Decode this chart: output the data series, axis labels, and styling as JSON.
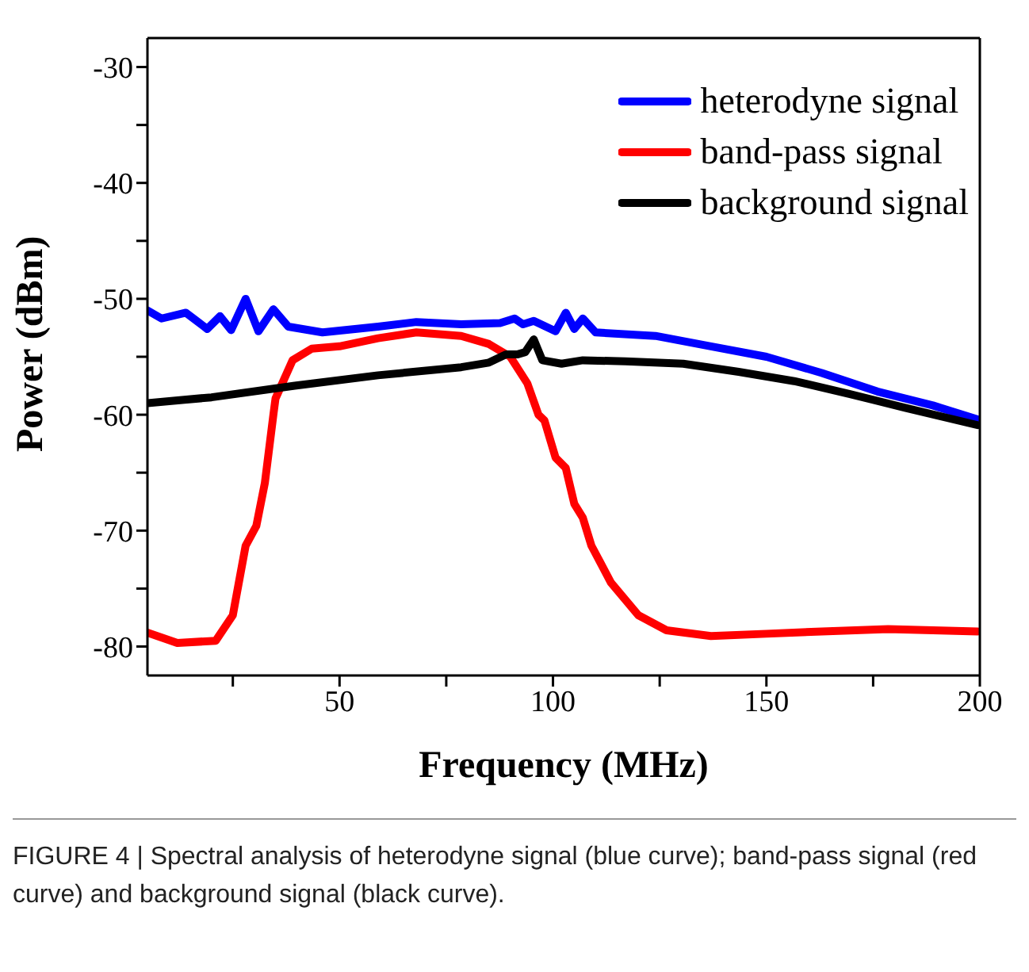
{
  "chart_data": {
    "type": "line",
    "xlabel": "Frequency (MHz)",
    "ylabel": "Power (dBm)",
    "xlim": [
      5,
      200
    ],
    "ylim": [
      -82.5,
      -27.5
    ],
    "xticks": [
      {
        "value": 25,
        "label": null
      },
      50,
      {
        "value": 75,
        "label": null
      },
      100,
      {
        "value": 125,
        "label": null
      },
      150,
      {
        "value": 175,
        "label": null
      },
      200
    ],
    "yticks": [
      -80,
      {
        "value": -75,
        "label": null
      },
      -70,
      {
        "value": -65,
        "label": null
      },
      -60,
      {
        "value": -55,
        "label": null
      },
      -50,
      {
        "value": -45,
        "label": null
      },
      -40,
      {
        "value": -35,
        "label": null
      },
      -30
    ],
    "legend": "top right",
    "marker": "none",
    "line_style": "solid",
    "series": [
      {
        "name": "heterodyne signal",
        "color": "#0000ff",
        "x": [
          5,
          8.3,
          14,
          19,
          22,
          24.6,
          28,
          31,
          34.5,
          38,
          46,
          59,
          68,
          78.5,
          87.6,
          91,
          93,
          95.5,
          100.6,
          103,
          105,
          107,
          110,
          124,
          137,
          150,
          163,
          176,
          189,
          199.5
        ],
        "values": [
          -51.0,
          -51.7,
          -51.2,
          -52.6,
          -51.5,
          -52.7,
          -50.0,
          -52.8,
          -50.9,
          -52.4,
          -52.9,
          -52.4,
          -52.0,
          -52.2,
          -52.1,
          -51.7,
          -52.2,
          -51.9,
          -52.8,
          -51.2,
          -52.6,
          -51.7,
          -52.9,
          -53.2,
          -54.1,
          -55.0,
          -56.4,
          -58.0,
          -59.2,
          -60.4
        ]
      },
      {
        "name": "band-pass signal",
        "color": "#ff0000",
        "x": [
          5,
          12,
          21,
          25,
          28,
          30.5,
          32.5,
          34.5,
          35,
          39,
          43.5,
          50,
          59,
          68,
          78.5,
          85,
          90,
          94,
          96.6,
          98,
          100.6,
          103,
          105,
          107,
          109,
          113.6,
          120,
          126.6,
          137,
          150,
          163,
          178.5,
          199.5
        ],
        "values": [
          -78.8,
          -79.7,
          -79.5,
          -77.3,
          -71.3,
          -69.6,
          -65.9,
          -60.0,
          -58.6,
          -55.3,
          -54.3,
          -54.1,
          -53.4,
          -52.9,
          -53.2,
          -53.9,
          -55.0,
          -57.3,
          -60.0,
          -60.5,
          -63.7,
          -64.6,
          -67.7,
          -68.9,
          -71.3,
          -74.5,
          -77.3,
          -78.6,
          -79.1,
          -78.9,
          -78.7,
          -78.5,
          -78.7
        ]
      },
      {
        "name": "background signal",
        "color": "#000000",
        "x": [
          5,
          20,
          39.5,
          59,
          78.5,
          85,
          89,
          91.6,
          93.5,
          95.5,
          97.5,
          102,
          107,
          117,
          130.5,
          143.5,
          156.5,
          169.4,
          182.5,
          199.5
        ],
        "values": [
          -59.0,
          -58.5,
          -57.5,
          -56.6,
          -55.9,
          -55.5,
          -54.8,
          -54.8,
          -54.6,
          -53.5,
          -55.3,
          -55.6,
          -55.3,
          -55.4,
          -55.6,
          -56.3,
          -57.1,
          -58.2,
          -59.4,
          -60.9
        ]
      }
    ],
    "annotations": [
      "FIGURE 4 | Spectral analysis of heterodyne signal (blue curve); band-pass signal (red curve) and background signal (black curve)."
    ]
  }
}
